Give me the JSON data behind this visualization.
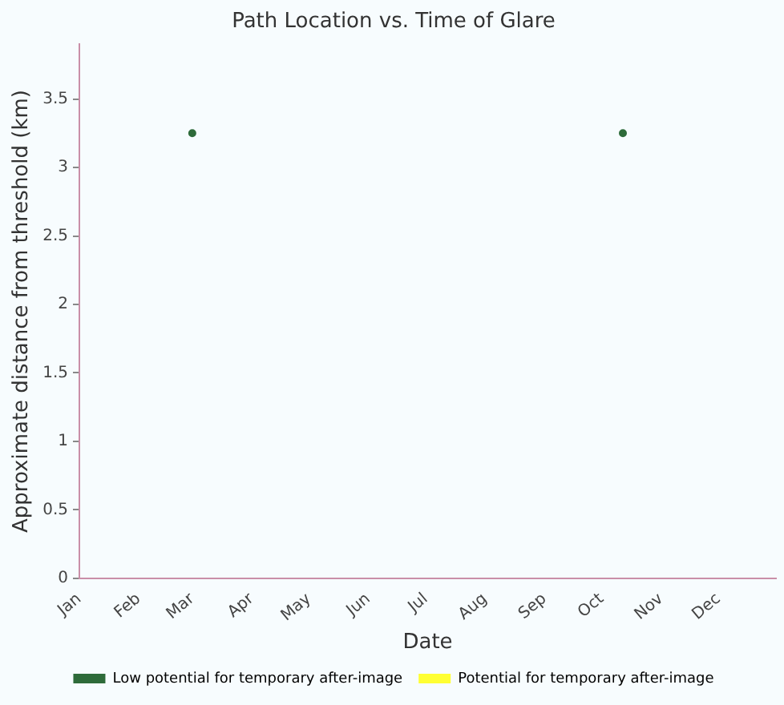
{
  "chart_data": {
    "type": "scatter",
    "title": "Path Location vs. Time of Glare",
    "xlabel": "Date",
    "ylabel": "Approximate distance from threshold (km)",
    "xlim": [
      "--01-01",
      "--12-31"
    ],
    "xticks": [
      {
        "value": "--01-01",
        "label": "Jan"
      },
      {
        "value": "--02-01",
        "label": "Feb"
      },
      {
        "value": "--03-01",
        "label": "Mar"
      },
      {
        "value": "--04-01",
        "label": "Apr"
      },
      {
        "value": "--05-01",
        "label": "May"
      },
      {
        "value": "--06-01",
        "label": "Jun"
      },
      {
        "value": "--07-01",
        "label": "Jul"
      },
      {
        "value": "--08-01",
        "label": "Aug"
      },
      {
        "value": "--09-01",
        "label": "Sep"
      },
      {
        "value": "--10-01",
        "label": "Oct"
      },
      {
        "value": "--11-01",
        "label": "Nov"
      },
      {
        "value": "--12-01",
        "label": "Dec"
      }
    ],
    "ylim": [
      0,
      3.9
    ],
    "yticks": [
      0,
      0.5,
      1,
      1.5,
      2,
      2.5,
      3,
      3.5
    ],
    "series": [
      {
        "name": "Low potential for temporary after-image",
        "color": "#2e6b3a",
        "x": [
          "--03-01",
          "--10-12"
        ],
        "values": [
          3.25,
          3.25
        ]
      },
      {
        "name": "Potential for temporary after-image",
        "color": "#ffff33"
      }
    ],
    "marker": "circle",
    "grid": false,
    "legend": "bottom"
  }
}
